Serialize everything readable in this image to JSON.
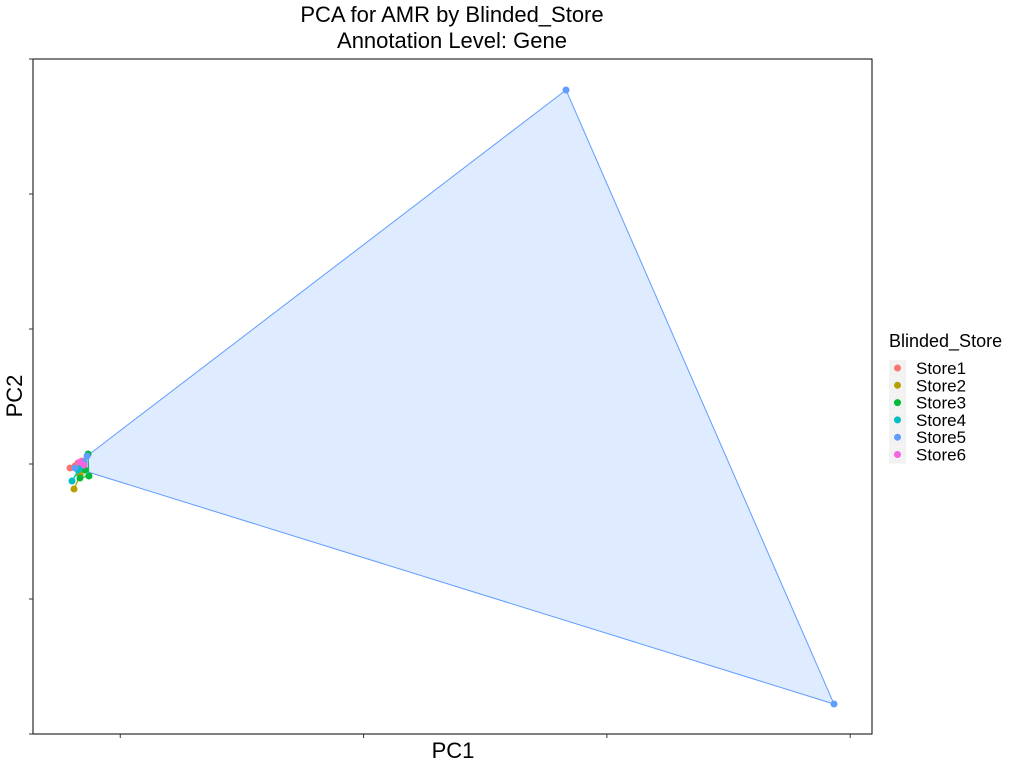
{
  "chart_data": {
    "type": "scatter",
    "title": "PCA for AMR by Blinded_Store",
    "subtitle": "Annotation Level: Gene",
    "x_label": "PC1",
    "y_label": "PC2",
    "legend_title": "Blinded_Store",
    "legend_position": "right",
    "xlim": [
      0,
      100
    ],
    "ylim": [
      0,
      100
    ],
    "xticks": [
      10.4,
      39.4,
      68.4,
      97.4
    ],
    "yticks": [
      0,
      20,
      40,
      60,
      80,
      100
    ],
    "hulls": true,
    "series": [
      {
        "name": "Store1",
        "color": "#F8766D",
        "x": [
          4.41,
          5.36,
          5.84,
          5.01
        ],
        "y": [
          39.41,
          40.15,
          40.44,
          39.7
        ]
      },
      {
        "name": "Store2",
        "color": "#B79F00",
        "x": [
          4.89,
          5.6,
          6.08
        ],
        "y": [
          36.3,
          38.37,
          39.41
        ]
      },
      {
        "name": "Store3",
        "color": "#00BA38",
        "x": [
          6.56,
          6.67,
          5.6,
          6.2
        ],
        "y": [
          41.48,
          38.22,
          37.93,
          39.11
        ]
      },
      {
        "name": "Store4",
        "color": "#00BFC4",
        "x": [
          4.65,
          5.36,
          5.84
        ],
        "y": [
          37.48,
          39.11,
          39.7
        ]
      },
      {
        "name": "Store5",
        "color": "#619CFF",
        "x": [
          63.53,
          95.47,
          6.44,
          5.01,
          6.08
        ],
        "y": [
          95.41,
          4.44,
          41.19,
          39.41,
          40.3
        ]
      },
      {
        "name": "Store6",
        "color": "#F564E3",
        "x": [
          5.6,
          6.08
        ],
        "y": [
          40.3,
          39.85
        ]
      }
    ]
  }
}
